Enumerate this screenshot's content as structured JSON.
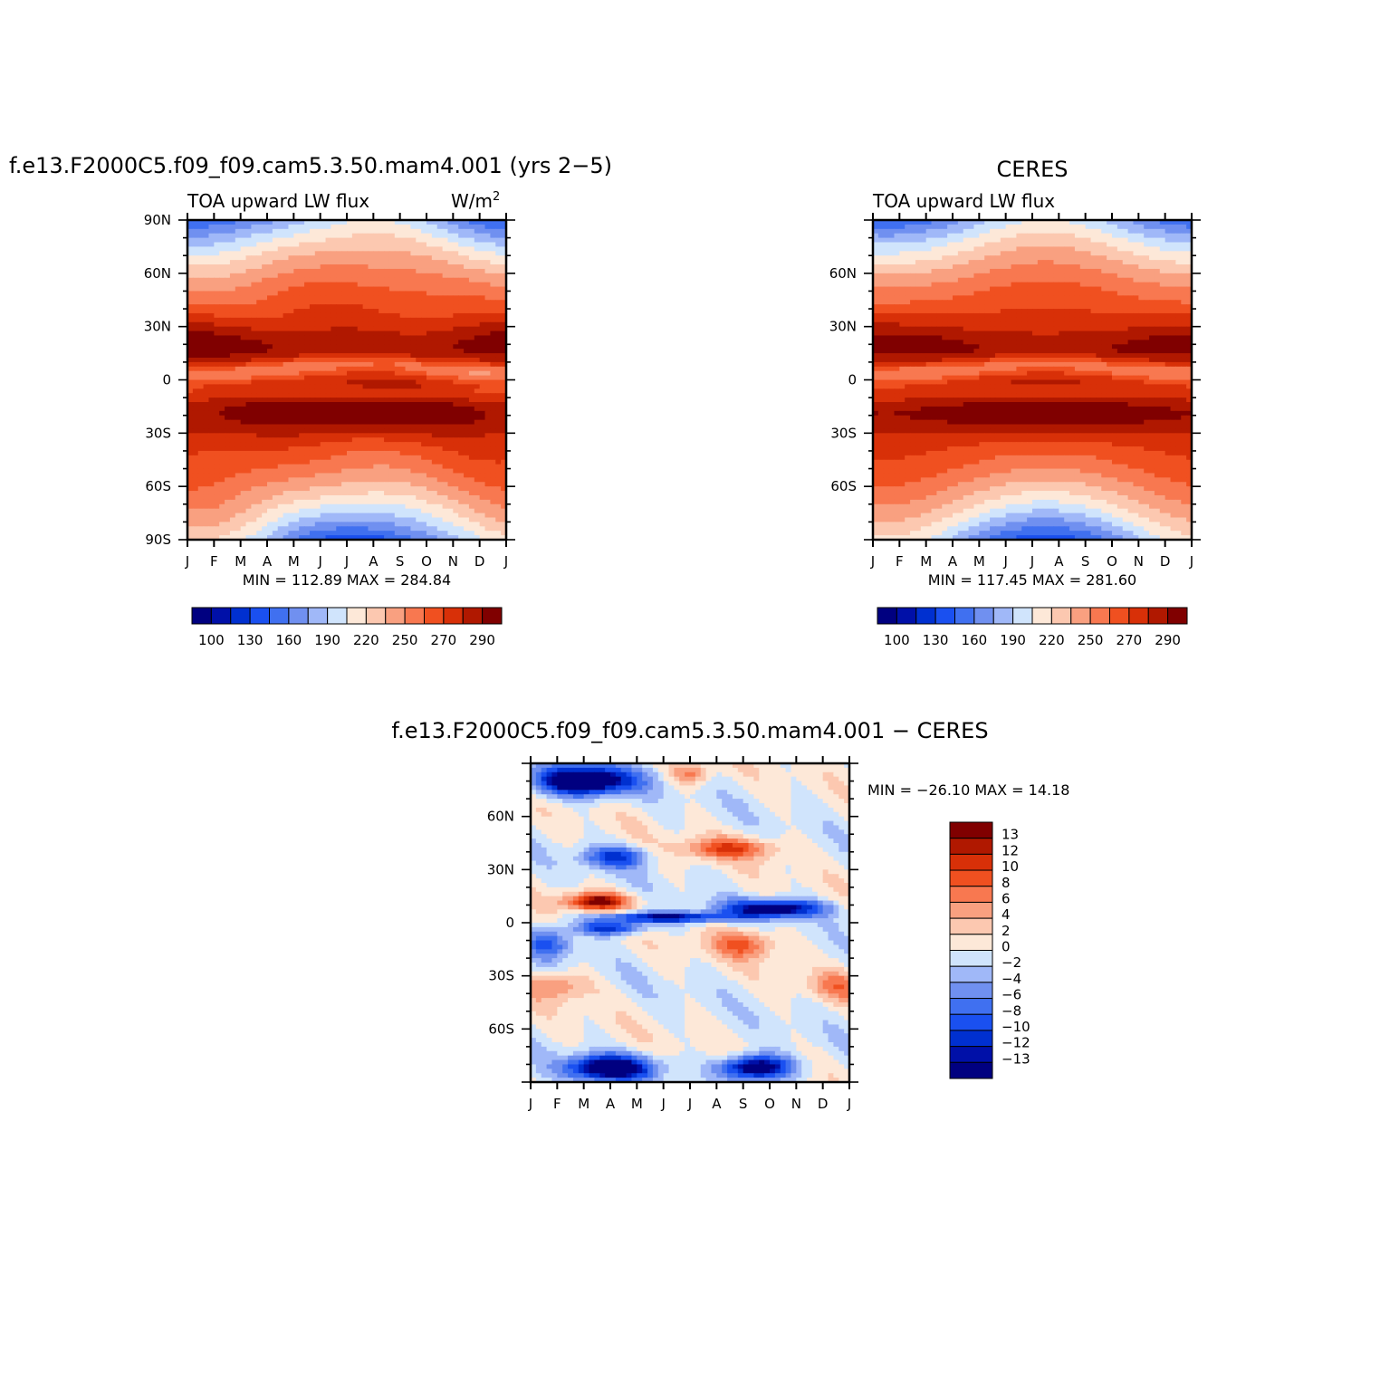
{
  "chart_data": [
    {
      "type": "heatmap",
      "title": "f.e13.F2000C5.f09_f09.cam5.3.50.mam4.001 (yrs 2−5)",
      "subtitle_left": "TOA upward LW flux",
      "subtitle_right": "W/m",
      "subtitle_right_sup": "2",
      "x_ticks": [
        "J",
        "F",
        "M",
        "A",
        "M",
        "J",
        "J",
        "A",
        "S",
        "O",
        "N",
        "D",
        "J"
      ],
      "y_ticks": [
        "90N",
        "60N",
        "30N",
        "0",
        "30S",
        "60S",
        "90S"
      ],
      "stats": "MIN = 112.89 MAX = 284.84",
      "levels": [
        100,
        110,
        120,
        130,
        140,
        150,
        160,
        170,
        180,
        190,
        200,
        210,
        220,
        230,
        240,
        250,
        260,
        270,
        280,
        290
      ],
      "colorbar_labels": [
        "100",
        "130",
        "160",
        "190",
        "220",
        "250",
        "270",
        "290"
      ],
      "colors": [
        "#000080",
        "#0010a8",
        "#0030d0",
        "#1a50f0",
        "#4070f0",
        "#7090f0",
        "#a0b8f8",
        "#d0e4fc",
        "#fde8d8",
        "#fcc8b0",
        "#f9a080",
        "#f87850",
        "#f05020",
        "#d83008",
        "#b01800",
        "#800000"
      ],
      "y_range": [
        -90,
        90
      ],
      "x_range": [
        "Jan",
        "Jan"
      ],
      "grid": false
    },
    {
      "type": "heatmap",
      "title": "CERES",
      "subtitle_left": "TOA upward LW flux",
      "x_ticks": [
        "J",
        "F",
        "M",
        "A",
        "M",
        "J",
        "J",
        "A",
        "S",
        "O",
        "N",
        "D",
        "J"
      ],
      "y_ticks": [
        "60N",
        "30N",
        "0",
        "30S",
        "60S"
      ],
      "stats": "MIN = 117.45 MAX = 281.60",
      "colorbar_labels": [
        "100",
        "130",
        "160",
        "190",
        "220",
        "250",
        "270",
        "290"
      ],
      "y_range": [
        -90,
        90
      ],
      "grid": false
    },
    {
      "type": "heatmap",
      "title": "f.e13.F2000C5.f09_f09.cam5.3.50.mam4.001 − CERES",
      "x_ticks": [
        "J",
        "F",
        "M",
        "A",
        "M",
        "J",
        "J",
        "A",
        "S",
        "O",
        "N",
        "D",
        "J"
      ],
      "y_ticks": [
        "60N",
        "30N",
        "0",
        "30S",
        "60S"
      ],
      "stats": "MIN = −26.10 MAX =  14.18",
      "colorbar_labels": [
        "13",
        "12",
        "10",
        "8",
        "6",
        "4",
        "2",
        "0",
        "−2",
        "−4",
        "−6",
        "−8",
        "−10",
        "−12",
        "−13"
      ],
      "colors": [
        "#800000",
        "#b01800",
        "#d83008",
        "#f05020",
        "#f87850",
        "#f9a080",
        "#fcc8b0",
        "#fde8d8",
        "#d0e4fc",
        "#a0b8f8",
        "#7090f0",
        "#4070f0",
        "#1a50f0",
        "#0030d0",
        "#0010a8",
        "#000080"
      ],
      "y_range": [
        -90,
        90
      ],
      "grid": false
    }
  ]
}
